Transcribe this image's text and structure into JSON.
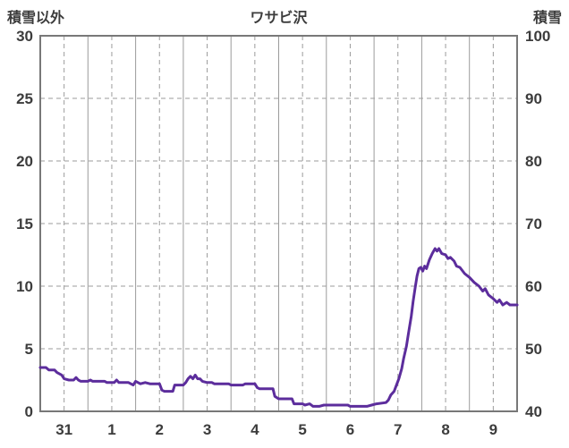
{
  "chart_data": {
    "type": "line",
    "title": "ワサビ沢",
    "left_axis": {
      "title": "積雪以外",
      "min": 0,
      "max": 30,
      "ticks": [
        0,
        5,
        10,
        15,
        20,
        25,
        30
      ]
    },
    "right_axis": {
      "title": "積雪",
      "min": 40,
      "max": 100,
      "ticks": [
        40,
        50,
        60,
        70,
        80,
        90,
        100
      ]
    },
    "x_axis": {
      "labels": [
        "31",
        "1",
        "2",
        "3",
        "4",
        "5",
        "6",
        "7",
        "8",
        "9"
      ]
    },
    "grid": {
      "color": "#9b9b9b",
      "border_color": "#787878"
    },
    "text_color": "#3c3c3c",
    "series": [
      {
        "color": "#5c2d9c",
        "points": [
          [
            0,
            3.5
          ],
          [
            0.12,
            3.5
          ],
          [
            0.18,
            3.3
          ],
          [
            0.3,
            3.3
          ],
          [
            0.35,
            3.1
          ],
          [
            0.45,
            2.9
          ],
          [
            0.5,
            2.6
          ],
          [
            0.6,
            2.5
          ],
          [
            0.7,
            2.5
          ],
          [
            0.75,
            2.7
          ],
          [
            0.8,
            2.5
          ],
          [
            0.85,
            2.4
          ],
          [
            1.0,
            2.4
          ],
          [
            1.05,
            2.5
          ],
          [
            1.1,
            2.4
          ],
          [
            1.35,
            2.4
          ],
          [
            1.4,
            2.3
          ],
          [
            1.55,
            2.3
          ],
          [
            1.6,
            2.5
          ],
          [
            1.65,
            2.3
          ],
          [
            1.85,
            2.3
          ],
          [
            1.95,
            2.1
          ],
          [
            2.0,
            2.4
          ],
          [
            2.1,
            2.2
          ],
          [
            2.2,
            2.3
          ],
          [
            2.3,
            2.2
          ],
          [
            2.5,
            2.2
          ],
          [
            2.55,
            1.7
          ],
          [
            2.6,
            1.6
          ],
          [
            2.78,
            1.6
          ],
          [
            2.82,
            2.1
          ],
          [
            3.0,
            2.1
          ],
          [
            3.05,
            2.3
          ],
          [
            3.1,
            2.6
          ],
          [
            3.15,
            2.8
          ],
          [
            3.2,
            2.6
          ],
          [
            3.25,
            2.9
          ],
          [
            3.3,
            2.6
          ],
          [
            3.35,
            2.6
          ],
          [
            3.4,
            2.4
          ],
          [
            3.5,
            2.3
          ],
          [
            3.6,
            2.3
          ],
          [
            3.65,
            2.2
          ],
          [
            3.95,
            2.2
          ],
          [
            4.0,
            2.1
          ],
          [
            4.25,
            2.1
          ],
          [
            4.3,
            2.2
          ],
          [
            4.5,
            2.2
          ],
          [
            4.55,
            1.9
          ],
          [
            4.6,
            1.8
          ],
          [
            4.88,
            1.8
          ],
          [
            4.92,
            1.2
          ],
          [
            5.0,
            1.0
          ],
          [
            5.28,
            1.0
          ],
          [
            5.32,
            0.6
          ],
          [
            5.5,
            0.6
          ],
          [
            5.55,
            0.5
          ],
          [
            5.65,
            0.6
          ],
          [
            5.72,
            0.4
          ],
          [
            5.85,
            0.4
          ],
          [
            5.95,
            0.5
          ],
          [
            6.45,
            0.5
          ],
          [
            6.5,
            0.4
          ],
          [
            6.85,
            0.4
          ],
          [
            6.95,
            0.5
          ],
          [
            7.05,
            0.6
          ],
          [
            7.25,
            0.7
          ],
          [
            7.3,
            0.9
          ],
          [
            7.35,
            1.3
          ],
          [
            7.42,
            1.6
          ],
          [
            7.48,
            2.2
          ],
          [
            7.52,
            2.6
          ],
          [
            7.58,
            3.4
          ],
          [
            7.62,
            4.2
          ],
          [
            7.68,
            5.2
          ],
          [
            7.72,
            6.2
          ],
          [
            7.78,
            7.6
          ],
          [
            7.82,
            8.8
          ],
          [
            7.86,
            9.8
          ],
          [
            7.9,
            10.8
          ],
          [
            7.94,
            11.4
          ],
          [
            7.98,
            11.5
          ],
          [
            8.02,
            11.2
          ],
          [
            8.06,
            11.6
          ],
          [
            8.1,
            11.4
          ],
          [
            8.16,
            12.1
          ],
          [
            8.22,
            12.6
          ],
          [
            8.28,
            13.0
          ],
          [
            8.32,
            12.8
          ],
          [
            8.36,
            13.0
          ],
          [
            8.42,
            12.6
          ],
          [
            8.5,
            12.5
          ],
          [
            8.55,
            12.2
          ],
          [
            8.6,
            12.3
          ],
          [
            8.68,
            12.0
          ],
          [
            8.73,
            11.6
          ],
          [
            8.8,
            11.5
          ],
          [
            8.9,
            11.0
          ],
          [
            9.0,
            10.7
          ],
          [
            9.1,
            10.3
          ],
          [
            9.2,
            10.0
          ],
          [
            9.28,
            9.6
          ],
          [
            9.33,
            9.8
          ],
          [
            9.4,
            9.3
          ],
          [
            9.5,
            9.0
          ],
          [
            9.58,
            8.7
          ],
          [
            9.63,
            8.9
          ],
          [
            9.7,
            8.5
          ],
          [
            9.78,
            8.7
          ],
          [
            9.85,
            8.5
          ],
          [
            10,
            8.5
          ]
        ]
      }
    ]
  }
}
